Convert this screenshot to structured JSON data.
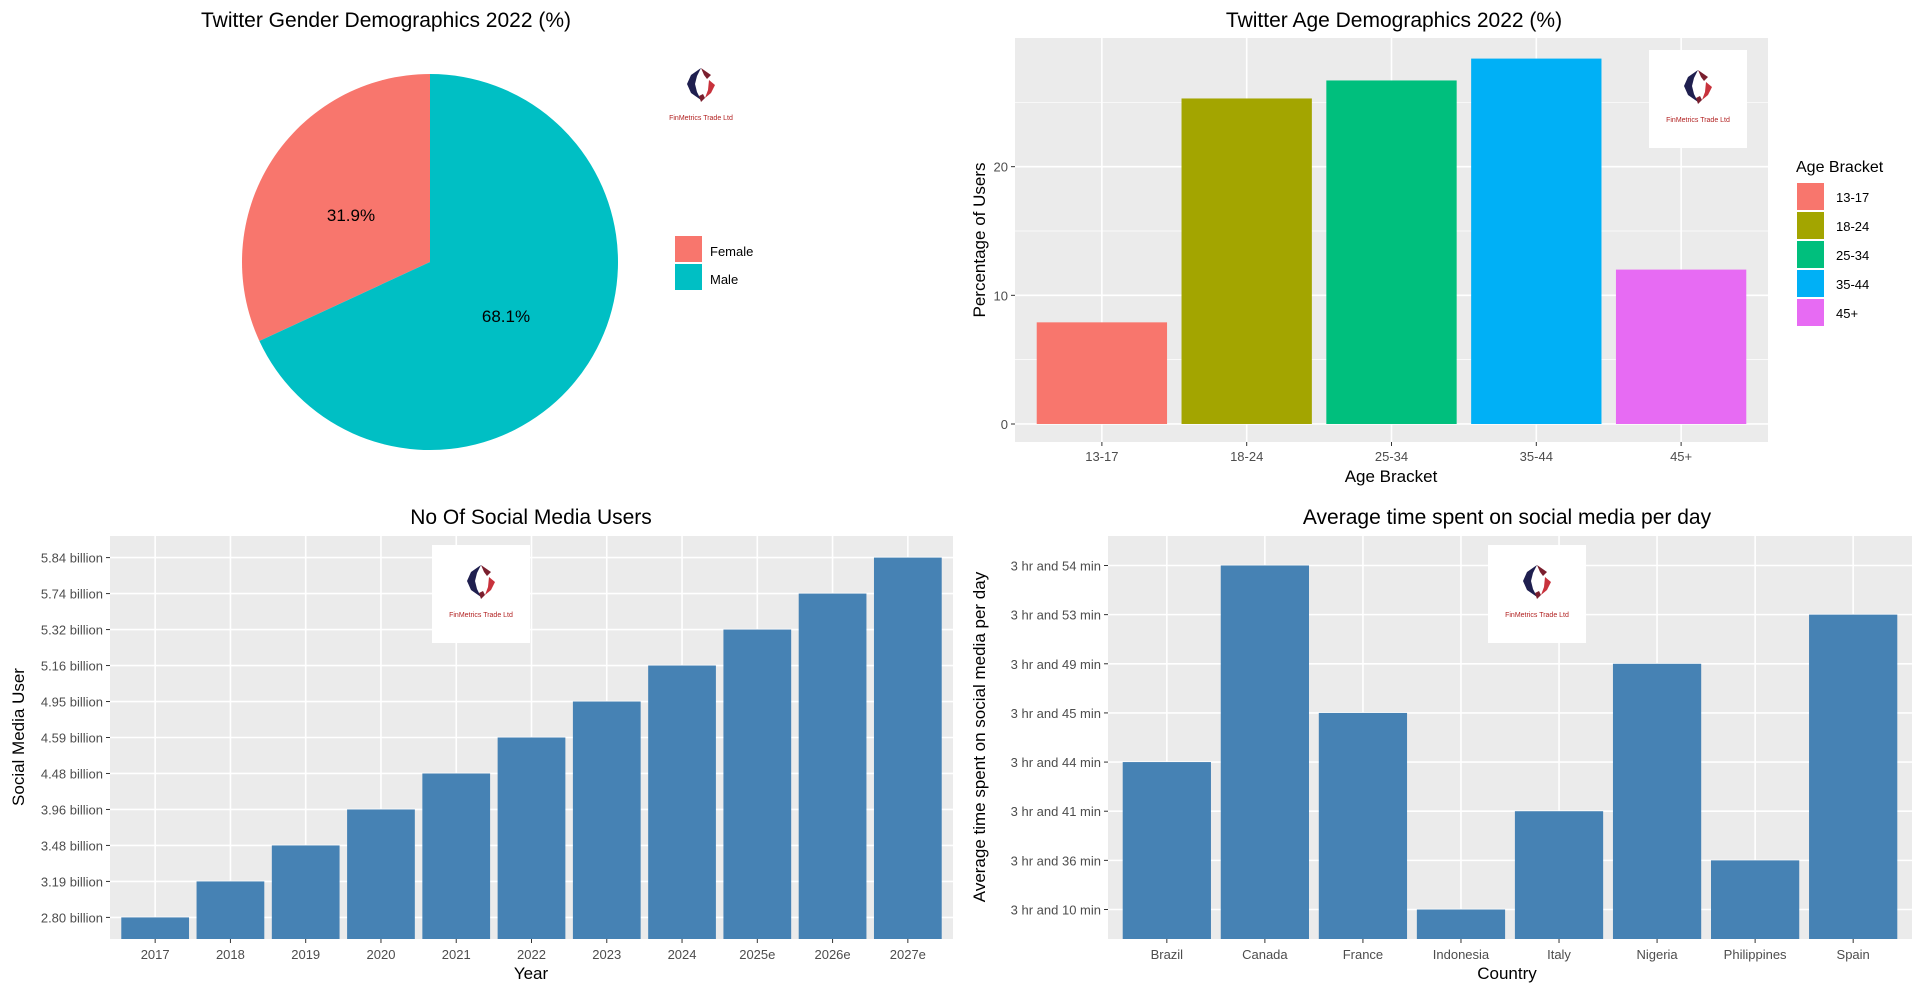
{
  "watermark_text": "FinMetrics Trade Ltd",
  "colors": {
    "panel_bg": "#EBEBEB",
    "grid": "#FFFFFF",
    "steel": "#4682B4",
    "tick_text": "#4D4D4D",
    "logo_navy": "#1F1F4F",
    "logo_maroon": "#7A1F2E",
    "logo_red": "#C8323C"
  },
  "chart_data": [
    {
      "id": "gender",
      "type": "pie",
      "title": "Twitter Gender Demographics 2022 (%)",
      "slices": [
        {
          "label": "Female",
          "value": 31.9,
          "text": "31.9%",
          "color": "#F8766D"
        },
        {
          "label": "Male",
          "value": 68.1,
          "text": "68.1%",
          "color": "#00BFC4"
        }
      ],
      "legend": {
        "title": "",
        "items": [
          "Female",
          "Male"
        ],
        "position": "right"
      }
    },
    {
      "id": "age",
      "type": "bar",
      "title": "Twitter Age Demographics 2022 (%)",
      "categories": [
        "13-17",
        "18-24",
        "25-34",
        "35-44",
        "45+"
      ],
      "values": [
        7.9,
        25.3,
        26.7,
        28.4,
        12.0
      ],
      "colors": [
        "#F8766D",
        "#A3A500",
        "#00BF7D",
        "#00B0F6",
        "#E76BF3"
      ],
      "xlabel": "Age Bracket",
      "ylabel": "Percentage of Users",
      "ylim": [
        -1.4,
        30
      ],
      "yticks": [
        0,
        10,
        20
      ],
      "ytick_labels": [
        "0",
        "10",
        "20"
      ],
      "grid": true,
      "legend": {
        "title": "Age Bracket",
        "items": [
          "13-17",
          "18-24",
          "25-34",
          "35-44",
          "45+"
        ],
        "position": "right"
      }
    },
    {
      "id": "users",
      "type": "bar",
      "title": "No Of Social Media Users",
      "categories": [
        "2017",
        "2018",
        "2019",
        "2020",
        "2021",
        "2022",
        "2023",
        "2024",
        "2025e",
        "2026e",
        "2027e"
      ],
      "values": [
        "2.80 billion",
        "3.19 billion",
        "3.48 billion",
        "3.96 billion",
        "4.48 billion",
        "4.59 billion",
        "4.95 billion",
        "5.16 billion",
        "5.32 billion",
        "5.74 billion",
        "5.84 billion"
      ],
      "note": "y axis is categorical (each value is its own level, ascending)",
      "xlabel": "Year",
      "ylabel": "Social Media User",
      "grid": true
    },
    {
      "id": "time",
      "type": "bar",
      "title": "Average time spent on social media per day",
      "categories": [
        "Brazil",
        "Canada",
        "France",
        "Indonesia",
        "Italy",
        "Nigeria",
        "Philippines",
        "Spain"
      ],
      "values": [
        "3 hr and 44 min",
        "3 hr and 54 min",
        "3 hr and 45 min",
        "3 hr and 10 min",
        "3 hr and 41 min",
        "3 hr and 49 min",
        "3 hr and 36 min",
        "3 hr and 53 min"
      ],
      "y_levels": [
        "3 hr and 10 min",
        "3 hr and 36 min",
        "3 hr and 41 min",
        "3 hr and 44 min",
        "3 hr and 45 min",
        "3 hr and 49 min",
        "3 hr and 53 min",
        "3 hr and 54 min"
      ],
      "xlabel": "Country",
      "ylabel": "Average time spent on social media per day",
      "grid": true
    }
  ]
}
